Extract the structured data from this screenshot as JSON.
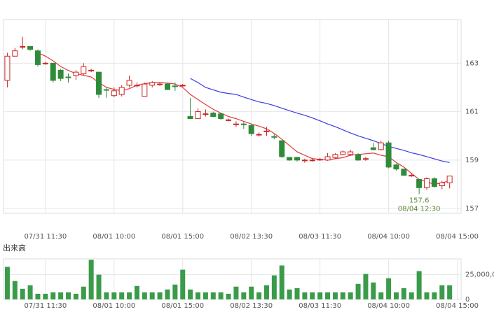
{
  "chart_data": [
    {
      "type": "candlestick",
      "xlim": [
        -0.5,
        59.5
      ],
      "xticks": [
        {
          "value": 5,
          "label": "07/31 11:30"
        },
        {
          "value": 14,
          "label": "08/01 10:00"
        },
        {
          "value": 23,
          "label": "08/01 15:00"
        },
        {
          "value": 32,
          "label": "08/02 13:30"
        },
        {
          "value": 41,
          "label": "08/03 11:30"
        },
        {
          "value": 50,
          "label": "08/04 10:00"
        },
        {
          "value": 59,
          "label": "08/04 15:00"
        }
      ],
      "ylim": [
        156.8,
        164.8
      ],
      "yticks": [
        157,
        159,
        161,
        163
      ],
      "grid": true,
      "up_color": "#cc2222",
      "down_color": "#2e8b3a",
      "open": [
        162.29,
        163.29,
        163.69,
        163.69,
        163.51,
        162.97,
        163.0,
        162.71,
        162.43,
        162.49,
        162.57,
        162.71,
        162.63,
        161.91,
        161.66,
        161.71,
        162.09,
        162.09,
        161.63,
        162.09,
        162.14,
        162.14,
        162.06,
        162.09,
        160.8,
        160.71,
        160.91,
        160.94,
        160.91,
        160.66,
        160.49,
        160.49,
        160.43,
        160.06,
        160.2,
        159.97,
        159.8,
        159.11,
        159.11,
        159.0,
        159.0,
        159.03,
        159.0,
        159.11,
        159.23,
        159.23,
        159.23,
        159.06,
        159.51,
        159.43,
        159.71,
        158.8,
        158.63,
        158.37,
        158.2,
        157.86,
        158.23,
        157.94,
        158.06
      ],
      "high": [
        163.43,
        163.63,
        164.09,
        163.69,
        163.57,
        163.06,
        163.0,
        162.77,
        162.57,
        162.71,
        163.0,
        162.77,
        162.63,
        162.0,
        162.0,
        162.09,
        162.49,
        162.2,
        162.2,
        162.26,
        162.2,
        162.2,
        162.2,
        162.14,
        161.57,
        161.14,
        161.09,
        161.0,
        160.94,
        160.71,
        160.6,
        160.57,
        160.49,
        160.14,
        160.37,
        160.06,
        159.8,
        159.11,
        159.14,
        159.06,
        159.06,
        159.09,
        159.29,
        159.29,
        159.4,
        159.43,
        159.29,
        159.14,
        159.71,
        159.8,
        159.8,
        158.86,
        158.63,
        158.43,
        158.2,
        158.29,
        158.29,
        158.14,
        158.34
      ],
      "low": [
        162.0,
        163.29,
        163.57,
        163.51,
        162.86,
        162.94,
        162.2,
        162.26,
        162.2,
        162.31,
        162.49,
        162.63,
        161.57,
        161.57,
        161.6,
        161.63,
        162.0,
        162.0,
        161.63,
        162.0,
        162.06,
        161.89,
        161.86,
        162.03,
        160.71,
        160.71,
        160.8,
        160.77,
        160.66,
        160.6,
        160.37,
        160.29,
        160.0,
        159.97,
        160.0,
        159.86,
        159.09,
        158.97,
        158.94,
        158.89,
        158.94,
        158.97,
        158.97,
        159.06,
        159.2,
        159.17,
        158.97,
        158.97,
        159.4,
        159.4,
        158.66,
        158.57,
        158.37,
        158.31,
        157.6,
        157.77,
        157.86,
        157.8,
        157.83
      ],
      "close": [
        163.29,
        163.51,
        163.69,
        163.57,
        162.94,
        163.0,
        162.29,
        162.37,
        162.4,
        162.63,
        162.86,
        162.71,
        161.71,
        161.89,
        161.86,
        162.0,
        162.29,
        162.09,
        162.14,
        162.2,
        162.14,
        161.91,
        162.03,
        162.09,
        160.71,
        161.0,
        160.91,
        160.8,
        160.71,
        160.66,
        160.49,
        160.46,
        160.09,
        160.06,
        160.2,
        159.94,
        159.14,
        159.0,
        159.0,
        159.0,
        159.0,
        159.03,
        159.14,
        159.23,
        159.34,
        159.34,
        159.0,
        159.06,
        159.43,
        159.71,
        158.71,
        158.63,
        158.37,
        158.37,
        157.86,
        158.23,
        157.91,
        158.06,
        158.34
      ],
      "lines": [
        {
          "color": "#e23a3a",
          "values": [
            null,
            null,
            null,
            null,
            163.43,
            163.29,
            163.1,
            162.86,
            162.7,
            162.57,
            162.5,
            162.43,
            162.2,
            162.0,
            161.92,
            161.86,
            161.95,
            162.09,
            162.15,
            162.2,
            162.2,
            162.18,
            162.14,
            162.0,
            161.71,
            161.5,
            161.29,
            161.1,
            160.94,
            160.8,
            160.71,
            160.6,
            160.49,
            160.4,
            160.29,
            160.1,
            159.86,
            159.6,
            159.34,
            159.2,
            159.06,
            159.03,
            159.0,
            159.06,
            159.1,
            159.2,
            159.23,
            159.26,
            159.29,
            159.2,
            159.14,
            158.9,
            158.71,
            158.45,
            158.2,
            158.1,
            158.0,
            158.06,
            158.14
          ]
        },
        {
          "color": "#3a3ae0",
          "values": [
            null,
            null,
            null,
            null,
            null,
            null,
            null,
            null,
            null,
            null,
            null,
            null,
            null,
            null,
            null,
            null,
            null,
            null,
            null,
            null,
            null,
            null,
            null,
            null,
            162.37,
            162.2,
            162.0,
            161.9,
            161.8,
            161.75,
            161.71,
            161.6,
            161.5,
            161.4,
            161.34,
            161.25,
            161.14,
            161.04,
            160.94,
            160.85,
            160.74,
            160.62,
            160.49,
            160.38,
            160.25,
            160.12,
            160.0,
            159.9,
            159.8,
            159.68,
            159.57,
            159.48,
            159.4,
            159.3,
            159.23,
            159.14,
            159.05,
            158.96,
            158.9
          ]
        }
      ],
      "annotation": {
        "value": 157.6,
        "label": "08/04 12:30"
      }
    },
    {
      "type": "bar",
      "title": "出来高",
      "color": "#3a9b4a",
      "xlim": [
        -0.5,
        59.5
      ],
      "xticks": [
        {
          "value": 5,
          "label": "07/31 11:30"
        },
        {
          "value": 14,
          "label": "08/01 10:00"
        },
        {
          "value": 23,
          "label": "08/01 15:00"
        },
        {
          "value": 32,
          "label": "08/02 13:30"
        },
        {
          "value": 41,
          "label": "08/03 11:30"
        },
        {
          "value": 50,
          "label": "08/04 10:00"
        },
        {
          "value": 59,
          "label": "08/04 15:00"
        }
      ],
      "ylim": [
        0,
        41000000
      ],
      "yticks": [
        0,
        {
          "value": 25000000,
          "label": "25,000,0"
        }
      ],
      "grid": true,
      "values": [
        32900000,
        18600000,
        10700000,
        14300000,
        5700000,
        5700000,
        7100000,
        7100000,
        7100000,
        5700000,
        12900000,
        40000000,
        25000000,
        7100000,
        7100000,
        7100000,
        7100000,
        13600000,
        7100000,
        7100000,
        7100000,
        10000000,
        15000000,
        30000000,
        10000000,
        7100000,
        7100000,
        7100000,
        7100000,
        5700000,
        12900000,
        7100000,
        12900000,
        7100000,
        14300000,
        24300000,
        34300000,
        10000000,
        11400000,
        7100000,
        7100000,
        7100000,
        7100000,
        7100000,
        7100000,
        7100000,
        15700000,
        25700000,
        17100000,
        7100000,
        21400000,
        7100000,
        11400000,
        7100000,
        28600000,
        7100000,
        7100000,
        14300000,
        14300000
      ]
    }
  ]
}
